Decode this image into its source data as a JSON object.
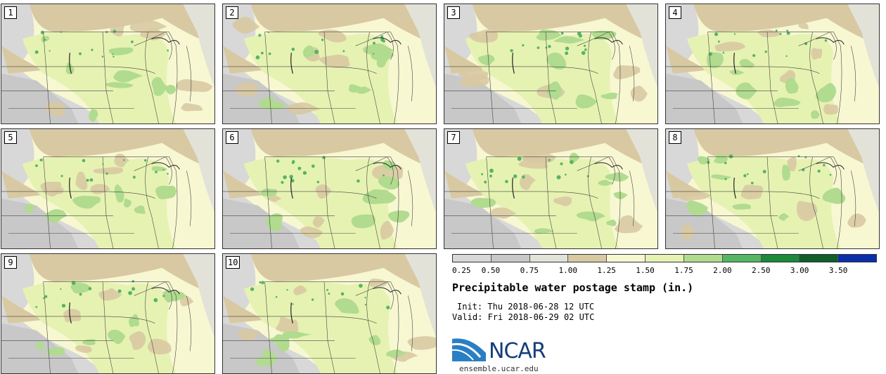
{
  "panels": [
    {
      "label": "1"
    },
    {
      "label": "2"
    },
    {
      "label": "3"
    },
    {
      "label": "4"
    },
    {
      "label": "5"
    },
    {
      "label": "6"
    },
    {
      "label": "7"
    },
    {
      "label": "8"
    },
    {
      "label": "9"
    },
    {
      "label": "10"
    }
  ],
  "legend": {
    "tick_labels": [
      "0.25",
      "0.50",
      "0.75",
      "1.00",
      "1.25",
      "1.50",
      "1.75",
      "2.00",
      "2.50",
      "3.00",
      "3.50"
    ],
    "bin_colors": [
      "#d8d8d8",
      "#c8c8c8",
      "#e2e2d8",
      "#d8c9a2",
      "#f7f7d2",
      "#e6f2b2",
      "#b1db8f",
      "#55b565",
      "#1b8a3a",
      "#0f5e2b",
      "#0a2fa8"
    ]
  },
  "info": {
    "title": "Precipitable water postage stamp (in.)",
    "init": "Init: Thu 2018-06-28 12 UTC",
    "valid": "Valid: Fri 2018-06-29 02 UTC"
  },
  "branding": {
    "logo_text": "NCAR",
    "website": "ensemble.ucar.edu",
    "logo_color": "#153d7a"
  }
}
